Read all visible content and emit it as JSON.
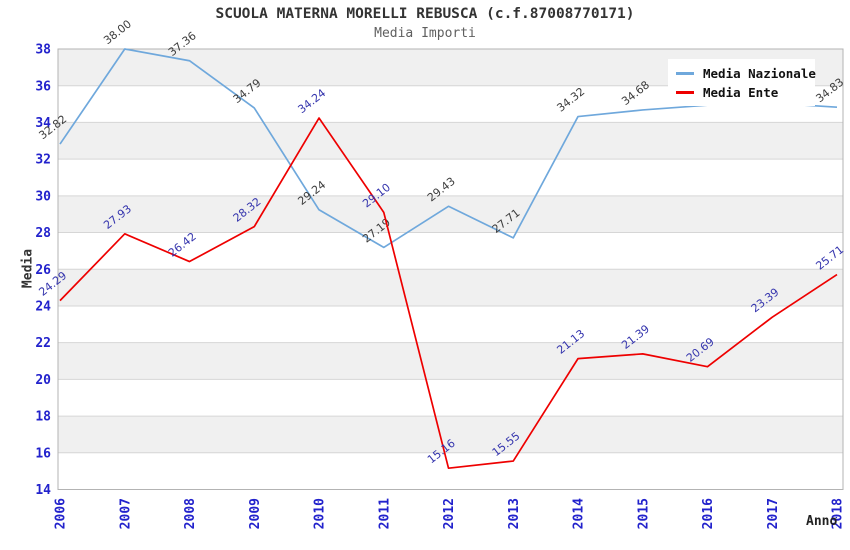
{
  "page": {
    "title": "SCUOLA MATERNA MORELLI REBUSCA (c.f.87008770171)",
    "subtitle": "Media Importi"
  },
  "chart_data": {
    "type": "line",
    "title": "SCUOLA MATERNA MORELLI REBUSCA (c.f.87008770171)",
    "subtitle": "Media Importi",
    "xlabel": "Anno",
    "ylabel": "Media",
    "x": [
      "2006",
      "2007",
      "2008",
      "2009",
      "2010",
      "2011",
      "2012",
      "2013",
      "2014",
      "2015",
      "2016",
      "2017",
      "2018"
    ],
    "ylim": [
      14,
      38
    ],
    "ytick_step": 2,
    "grid": "horizontal-bands",
    "band_fill_colors": [
      "#ffffff",
      "#f0f0f0"
    ],
    "gridline_color": "#d6d6d6",
    "border_color": "#b3b3b3",
    "axis_text_color": "#2222cc",
    "legend_position": "top-right",
    "series": [
      {
        "name": "Media Nazionale",
        "color": "#6fa8dc",
        "label_color": "#3d3d3d",
        "values": [
          32.82,
          38.0,
          37.36,
          34.79,
          29.24,
          27.19,
          29.43,
          27.71,
          34.32,
          34.68,
          34.94,
          35.05,
          34.83
        ],
        "point_labels": [
          "32.82",
          "38.00",
          "37.36",
          "34.79",
          "29.24",
          "27.19",
          "29.43",
          "27.71",
          "34.32",
          "34.68",
          "",
          "",
          "34.83"
        ]
      },
      {
        "name": "Media Ente",
        "color": "#ee0000",
        "label_color": "#3434ad",
        "values": [
          24.29,
          27.93,
          26.42,
          28.32,
          34.24,
          29.1,
          15.16,
          15.55,
          21.13,
          21.39,
          20.69,
          23.39,
          25.71
        ],
        "point_labels": [
          "24.29",
          "27.93",
          "26.42",
          "28.32",
          "34.24",
          "29.10",
          "15.16",
          "15.55",
          "21.13",
          "21.39",
          "20.69",
          "23.39",
          "25.71"
        ]
      }
    ]
  }
}
